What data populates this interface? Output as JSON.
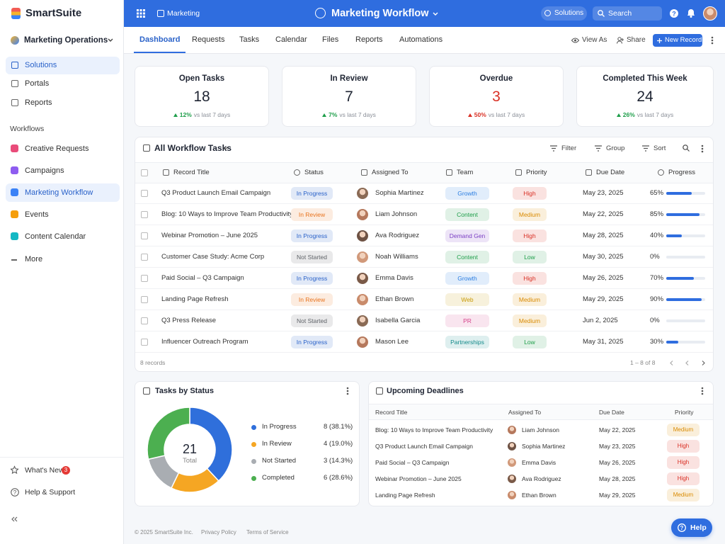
{
  "sidebar": {
    "brand": "SmartSuite",
    "workspace": "Marketing Operations",
    "nav": [
      "Solutions",
      "Portals",
      "Reports"
    ],
    "nav_active": 0,
    "section": "Workflows",
    "workflows": [
      "Creative Requests",
      "Campaigns",
      "Marketing Workflow",
      "Events",
      "Content Calendar",
      "More"
    ],
    "workflow_active": 2,
    "whats_new": "What's New",
    "whats_new_badge": 3,
    "help": "Help & Support"
  },
  "topbar": {
    "breadcrumb": "Marketing",
    "title": "Marketing Workflow",
    "solutions": "Solutions",
    "search": "Search"
  },
  "tabs": {
    "items": [
      "Dashboard",
      "Requests",
      "Tasks",
      "Calendar",
      "Files",
      "Reports",
      "Automations"
    ],
    "active": 0,
    "view_as": "View As",
    "share": "Share",
    "new_record": "New Record"
  },
  "kpis": [
    {
      "label": "Open Tasks",
      "value": 18,
      "change": "12%",
      "note": "vs last 7 days",
      "color": "#1f2533",
      "trend_color": "#1e9e4a"
    },
    {
      "label": "In Review",
      "value": 7,
      "change": "7%",
      "note": "vs last 7 days",
      "color": "#1f2533",
      "trend_color": "#1e9e4a"
    },
    {
      "label": "Overdue",
      "value": 3,
      "change": "50%",
      "note": "vs last 7 days",
      "color": "#d93025",
      "trend_color": "#d93025"
    },
    {
      "label": "Completed This Week",
      "value": 24,
      "change": "26%",
      "note": "vs last 7 days",
      "color": "#1f2533",
      "trend_color": "#1e9e4a"
    }
  ],
  "table": {
    "title": "All Workflow Tasks",
    "toolbar": [
      "Filter",
      "Group",
      "Sort"
    ],
    "columns": [
      "Record Title",
      "Status",
      "Assigned To",
      "Team",
      "Priority",
      "Due Date",
      "Progress"
    ],
    "rows": [
      {
        "title": "Q3 Product Launch Email Campaign",
        "status": {
          "text": "In Progress",
          "color": "#2a62c9"
        },
        "assignee": "Sophia Martinez",
        "team": {
          "text": "Growth",
          "color": "#2a7de1"
        },
        "priority": {
          "text": "High",
          "color": "#d93025"
        },
        "due": "May 23, 2025",
        "progress": {
          "value": 65,
          "label": "65%"
        }
      },
      {
        "title": "Blog: 10 Ways to Improve Team Productivity",
        "status": {
          "text": "In Review",
          "color": "#e8741f"
        },
        "assignee": "Liam Johnson",
        "team": {
          "text": "Content",
          "color": "#1e9e4a"
        },
        "priority": {
          "text": "Medium",
          "color": "#d98a00"
        },
        "due": "May 22, 2025",
        "progress": {
          "value": 85,
          "label": "85%"
        }
      },
      {
        "title": "Webinar Promotion – June 2025",
        "status": {
          "text": "In Progress",
          "color": "#2a62c9"
        },
        "assignee": "Ava Rodriguez",
        "team": {
          "text": "Demand Gen",
          "color": "#7b3fc4"
        },
        "priority": {
          "text": "High",
          "color": "#d93025"
        },
        "due": "May 28, 2025",
        "progress": {
          "value": 40,
          "label": "40%"
        }
      },
      {
        "title": "Customer Case Study: Acme Corp",
        "status": {
          "text": "Not Started",
          "color": "#5f6368"
        },
        "assignee": "Noah Williams",
        "team": {
          "text": "Content",
          "color": "#1e9e4a"
        },
        "priority": {
          "text": "Low",
          "color": "#1e9e4a"
        },
        "due": "May 30, 2025",
        "progress": {
          "value": 0,
          "label": "0%"
        }
      },
      {
        "title": "Paid Social – Q3 Campaign",
        "status": {
          "text": "In Progress",
          "color": "#2a62c9"
        },
        "assignee": "Emma Davis",
        "team": {
          "text": "Growth",
          "color": "#2a7de1"
        },
        "priority": {
          "text": "High",
          "color": "#d93025"
        },
        "due": "May 26, 2025",
        "progress": {
          "value": 70,
          "label": "70%"
        }
      },
      {
        "title": "Landing Page Refresh",
        "status": {
          "text": "In Review",
          "color": "#e8741f"
        },
        "assignee": "Ethan Brown",
        "team": {
          "text": "Web",
          "color": "#c99a06"
        },
        "priority": {
          "text": "Medium",
          "color": "#d98a00"
        },
        "due": "May 29, 2025",
        "progress": {
          "value": 90,
          "label": "90%"
        }
      },
      {
        "title": "Q3 Press Release",
        "status": {
          "text": "Not Started",
          "color": "#5f6368"
        },
        "assignee": "Isabella Garcia",
        "team": {
          "text": "PR",
          "color": "#d6428a"
        },
        "priority": {
          "text": "Medium",
          "color": "#d98a00"
        },
        "due": "Jun 2, 2025",
        "progress": {
          "value": 0,
          "label": "0%"
        }
      },
      {
        "title": "Influencer Outreach Program",
        "status": {
          "text": "In Progress",
          "color": "#2a62c9"
        },
        "assignee": "Mason Lee",
        "team": {
          "text": "Partnerships",
          "color": "#138a8a"
        },
        "priority": {
          "text": "Low",
          "color": "#1e9e4a"
        },
        "due": "May 31, 2025",
        "progress": {
          "value": 30,
          "label": "30%"
        }
      }
    ],
    "count": "8 records",
    "pagination": "1 – 8 of 8"
  },
  "status_chart": {
    "type": "pie",
    "title": "Tasks by Status",
    "total": 21,
    "total_label": "Total",
    "series": [
      {
        "name": "In Progress",
        "value": 8,
        "label": "8 (38.1%)",
        "color": "#2f6fdb"
      },
      {
        "name": "In Review",
        "value": 4,
        "label": "4 (19.0%)",
        "color": "#f5a623"
      },
      {
        "name": "Not Started",
        "value": 3,
        "label": "3 (14.3%)",
        "color": "#a9adb2"
      },
      {
        "name": "Completed",
        "value": 6,
        "label": "6 (28.6%)",
        "color": "#4caf50"
      }
    ]
  },
  "deadlines": {
    "title": "Upcoming Deadlines",
    "columns": [
      "Record Title",
      "Assigned To",
      "Due Date",
      "Priority"
    ],
    "rows": [
      {
        "title": "Blog: 10 Ways to Improve Team Productivity",
        "assignee": "Liam Johnson",
        "due": "May 22, 2025",
        "priority": {
          "text": "Medium",
          "color": "#d98a00"
        }
      },
      {
        "title": "Q3 Product Launch Email Campaign",
        "assignee": "Sophia Martinez",
        "due": "May 23, 2025",
        "priority": {
          "text": "High",
          "color": "#d93025"
        }
      },
      {
        "title": "Paid Social – Q3 Campaign",
        "assignee": "Emma Davis",
        "due": "May 26, 2025",
        "priority": {
          "text": "High",
          "color": "#d93025"
        }
      },
      {
        "title": "Webinar Promotion – June 2025",
        "assignee": "Ava Rodriguez",
        "due": "May 28, 2025",
        "priority": {
          "text": "High",
          "color": "#d93025"
        }
      },
      {
        "title": "Landing Page Refresh",
        "assignee": "Ethan Brown",
        "due": "May 29, 2025",
        "priority": {
          "text": "Medium",
          "color": "#d98a00"
        }
      }
    ]
  },
  "footer": {
    "copyright": "© 2025 SmartSuite Inc.",
    "links": [
      "Privacy Policy",
      "Terms of Service"
    ],
    "help_button": "Help"
  }
}
